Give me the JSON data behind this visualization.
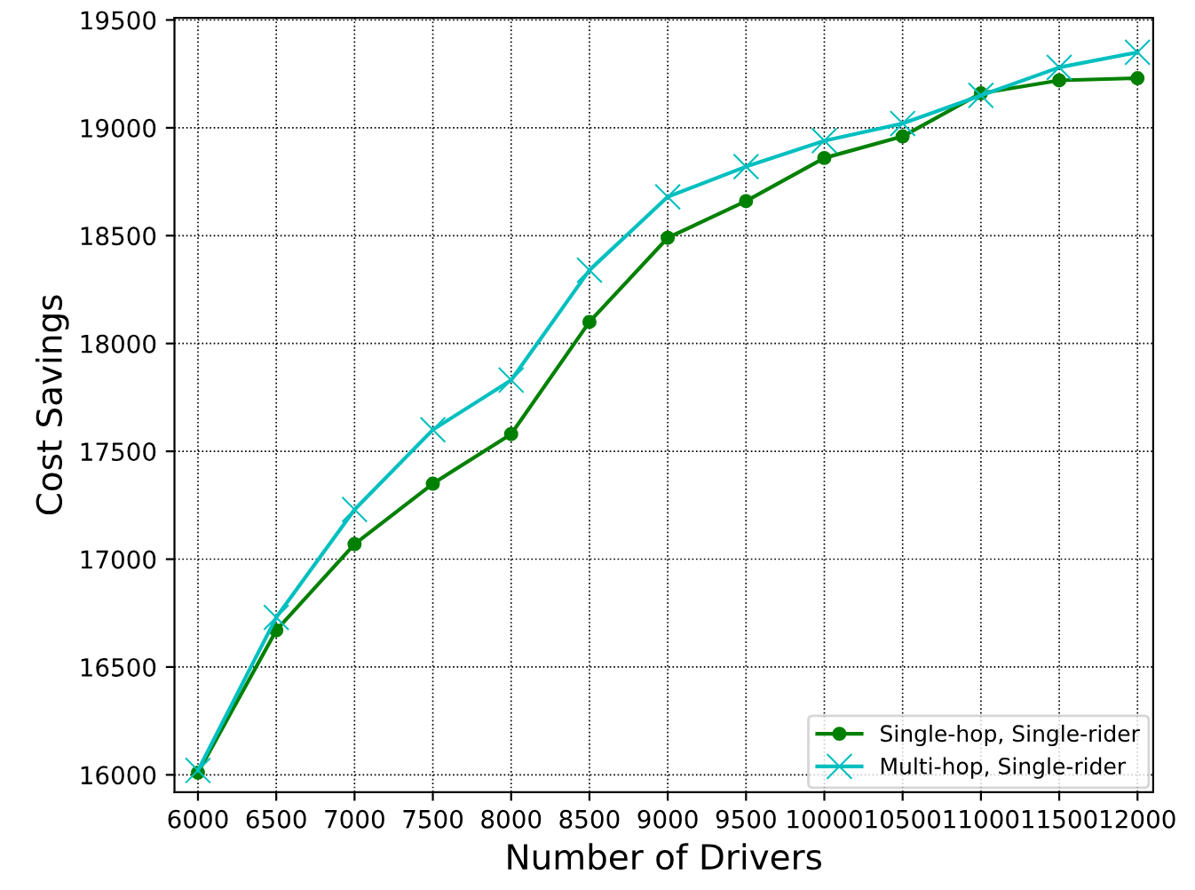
{
  "chart_data": {
    "type": "line",
    "xlabel": "Number of Drivers",
    "ylabel": "Cost Savings",
    "x": [
      6000,
      6500,
      7000,
      7500,
      8000,
      8500,
      9000,
      9500,
      10000,
      10500,
      11000,
      11500,
      12000
    ],
    "series": [
      {
        "name": "Single-hop, Single-rider",
        "color": "#008000",
        "marker": "circle",
        "values": [
          16010,
          16670,
          17070,
          17350,
          17580,
          18100,
          18490,
          18660,
          18860,
          18960,
          19160,
          19220,
          19230
        ]
      },
      {
        "name": "Multi-hop, Single-rider",
        "color": "#00bfbf",
        "marker": "cross",
        "values": [
          16020,
          16730,
          17230,
          17600,
          17830,
          18340,
          18680,
          18820,
          18940,
          19020,
          19150,
          19280,
          19350
        ]
      }
    ],
    "xlim": [
      5850,
      12100
    ],
    "xticks": [
      6000,
      6500,
      7000,
      7500,
      8000,
      8500,
      9000,
      9500,
      10000,
      10500,
      11000,
      11500,
      12000
    ],
    "ylim": [
      15920,
      19510
    ],
    "yticks": [
      16000,
      16500,
      17000,
      17500,
      18000,
      18500,
      19000,
      19500
    ],
    "grid": true,
    "legend": "bottom right",
    "line_style": "solid"
  }
}
